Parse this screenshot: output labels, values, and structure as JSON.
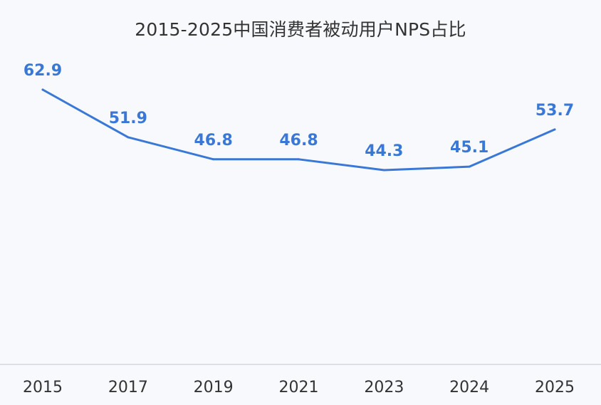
{
  "chart_data": {
    "type": "line",
    "title": "2015-2025中国消费者被动用户NPS占比",
    "categories": [
      "2015",
      "2017",
      "2019",
      "2021",
      "2023",
      "2024",
      "2025"
    ],
    "series": [
      {
        "values": [
          62.9,
          51.9,
          46.8,
          46.8,
          44.3,
          45.1,
          53.7
        ]
      }
    ],
    "data_labels": [
      "62.9",
      "51.9",
      "46.8",
      "46.8",
      "44.3",
      "45.1",
      "53.7"
    ],
    "ylim": [
      0,
      70
    ],
    "grid": false,
    "legend": "none",
    "colors": {
      "line": "#3a78d8",
      "label": "#3a78d8",
      "drop_line": "#9fbcee",
      "axis": "#d4d8de",
      "tick_text": "#333333",
      "background": "#f7f9fd"
    }
  }
}
